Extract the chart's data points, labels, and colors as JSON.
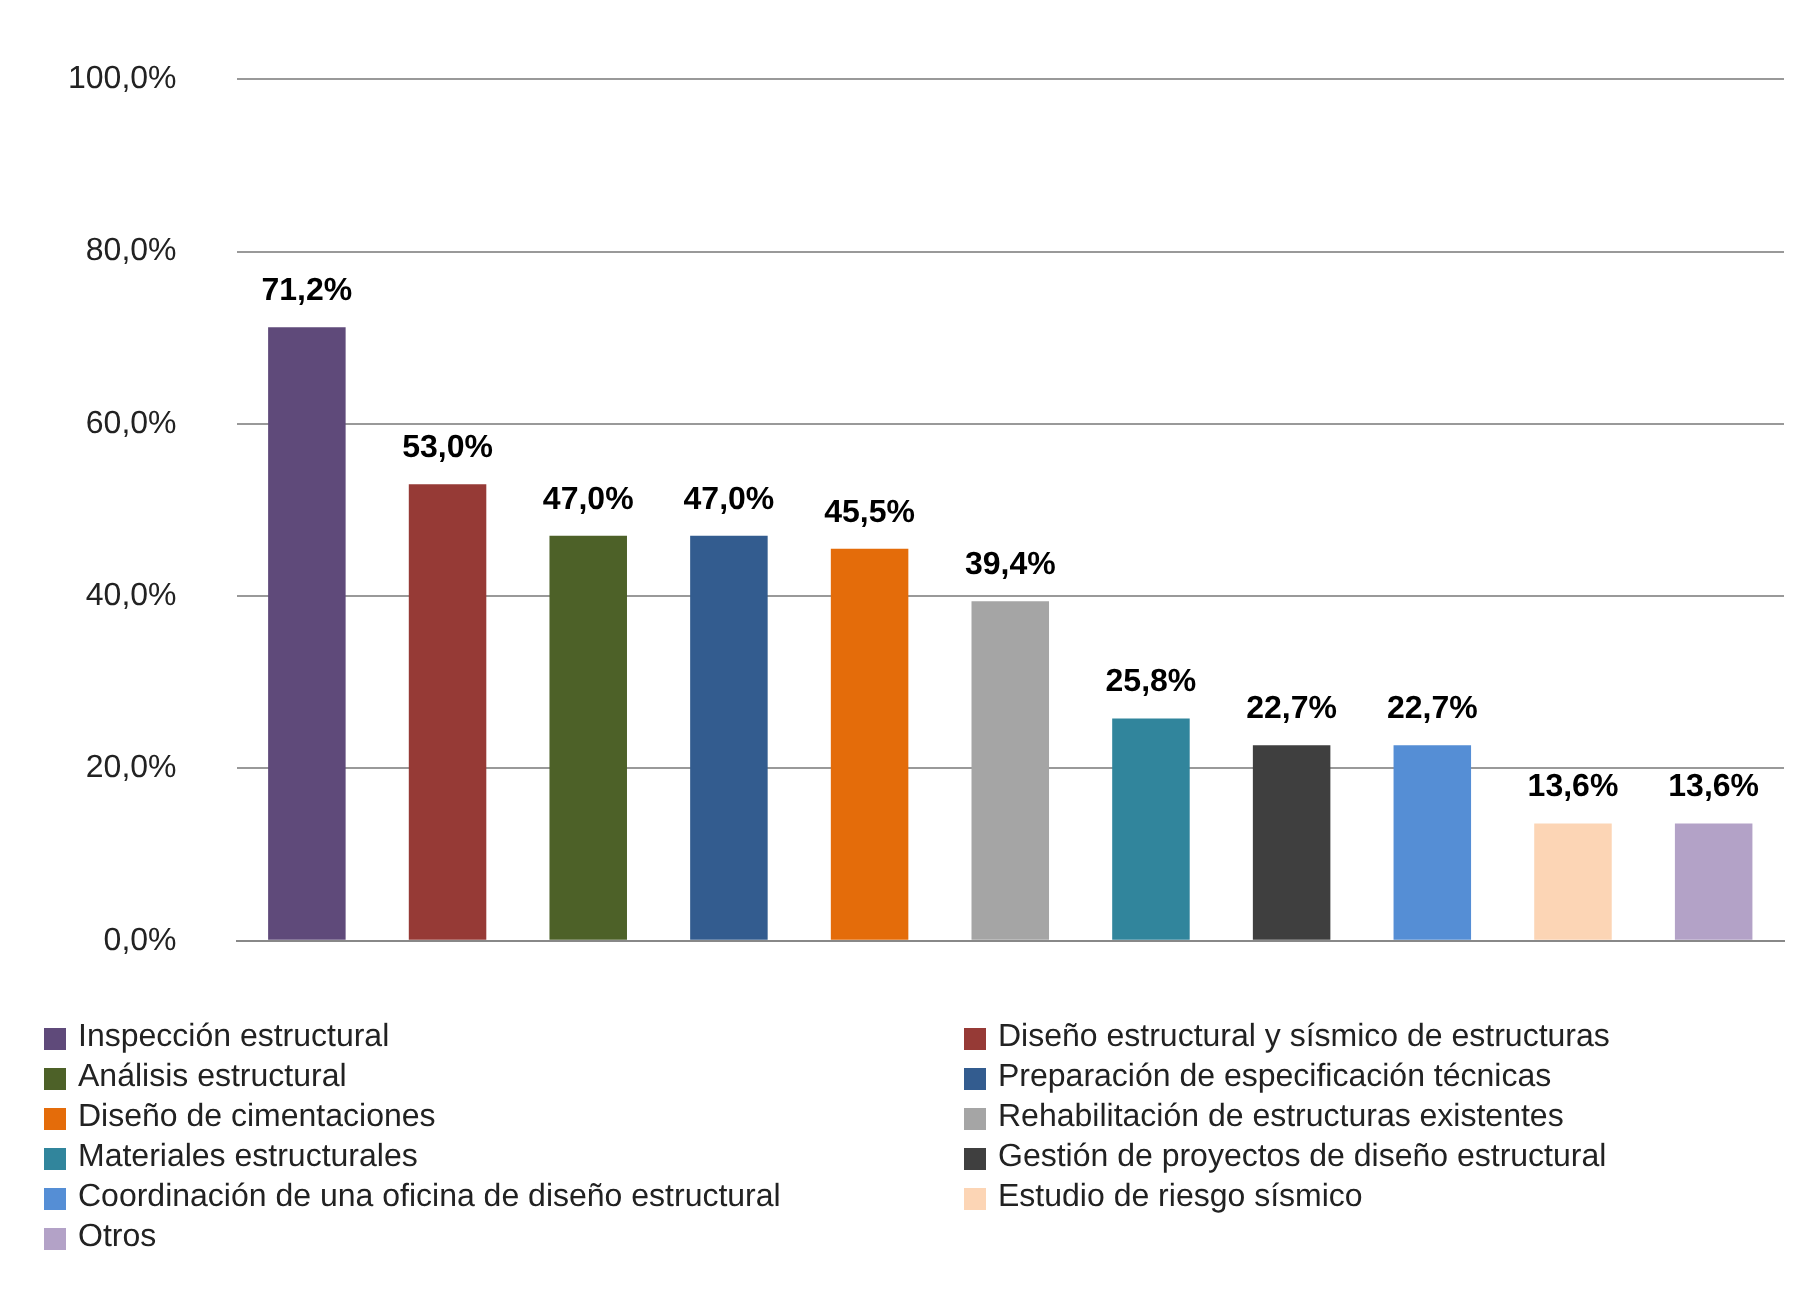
{
  "chart_data": {
    "type": "bar",
    "categories": [
      null,
      null,
      null,
      null,
      null,
      null,
      null,
      null,
      null,
      null,
      null
    ],
    "ylim": [
      0,
      100
    ],
    "yticks": [
      {
        "value": 0,
        "label": "0,0%"
      },
      {
        "value": 20,
        "label": "20,0%"
      },
      {
        "value": 40,
        "label": "40,0%"
      },
      {
        "value": 60,
        "label": "60,0%"
      },
      {
        "value": 80,
        "label": "80,0%"
      },
      {
        "value": 100,
        "label": "100,0%"
      }
    ],
    "grid": "y",
    "legend": "bottom",
    "series": [
      {
        "name": "Inspección estructural",
        "color": "#5f4a7a",
        "values": [
          71.2,
          null,
          null,
          null,
          null,
          null,
          null,
          null,
          null,
          null,
          null
        ],
        "value_labels": [
          "71,2%",
          null,
          null,
          null,
          null,
          null,
          null,
          null,
          null,
          null,
          null
        ]
      },
      {
        "name": "Diseño estructural y sísmico de estructuras",
        "color": "#963a36",
        "values": [
          null,
          53.0,
          null,
          null,
          null,
          null,
          null,
          null,
          null,
          null,
          null
        ],
        "value_labels": [
          null,
          "53,0%",
          null,
          null,
          null,
          null,
          null,
          null,
          null,
          null,
          null
        ]
      },
      {
        "name": "Análisis estructural",
        "color": "#4d6128",
        "values": [
          null,
          null,
          47.0,
          null,
          null,
          null,
          null,
          null,
          null,
          null,
          null
        ],
        "value_labels": [
          null,
          null,
          "47,0%",
          null,
          null,
          null,
          null,
          null,
          null,
          null,
          null
        ]
      },
      {
        "name": "Preparación de especificación técnicas",
        "color": "#335c8f",
        "values": [
          null,
          null,
          null,
          47.0,
          null,
          null,
          null,
          null,
          null,
          null,
          null
        ],
        "value_labels": [
          null,
          null,
          null,
          "47,0%",
          null,
          null,
          null,
          null,
          null,
          null,
          null
        ]
      },
      {
        "name": "Diseño de cimentaciones",
        "color": "#e46c0a",
        "values": [
          null,
          null,
          null,
          null,
          45.5,
          null,
          null,
          null,
          null,
          null,
          null
        ],
        "value_labels": [
          null,
          null,
          null,
          null,
          "45,5%",
          null,
          null,
          null,
          null,
          null,
          null
        ]
      },
      {
        "name": "Rehabilitación de estructuras existentes",
        "color": "#a5a5a5",
        "values": [
          null,
          null,
          null,
          null,
          null,
          39.4,
          null,
          null,
          null,
          null,
          null
        ],
        "value_labels": [
          null,
          null,
          null,
          null,
          null,
          "39,4%",
          null,
          null,
          null,
          null,
          null
        ]
      },
      {
        "name": "Materiales estructurales",
        "color": "#31859c",
        "values": [
          null,
          null,
          null,
          null,
          null,
          null,
          25.8,
          null,
          null,
          null,
          null
        ],
        "value_labels": [
          null,
          null,
          null,
          null,
          null,
          null,
          "25,8%",
          null,
          null,
          null,
          null
        ]
      },
      {
        "name": "Gestión de proyectos de diseño estructural",
        "color": "#3f3f3f",
        "values": [
          null,
          null,
          null,
          null,
          null,
          null,
          null,
          22.7,
          null,
          null,
          null
        ],
        "value_labels": [
          null,
          null,
          null,
          null,
          null,
          null,
          null,
          "22,7%",
          null,
          null,
          null
        ]
      },
      {
        "name": "Coordinación de una oficina de diseño estructural",
        "color": "#558ed5",
        "values": [
          null,
          null,
          null,
          null,
          null,
          null,
          null,
          null,
          22.7,
          null,
          null
        ],
        "value_labels": [
          null,
          null,
          null,
          null,
          null,
          null,
          null,
          null,
          "22,7%",
          null,
          null
        ]
      },
      {
        "name": "Estudio de riesgo sísmico",
        "color": "#fcd5b5",
        "values": [
          null,
          null,
          null,
          null,
          null,
          null,
          null,
          null,
          null,
          13.6,
          null
        ],
        "value_labels": [
          null,
          null,
          null,
          null,
          null,
          null,
          null,
          null,
          null,
          "13,6%",
          null
        ]
      },
      {
        "name": "Otros",
        "color": "#b3a2c7",
        "values": [
          null,
          null,
          null,
          null,
          null,
          null,
          null,
          null,
          null,
          null,
          13.6
        ],
        "value_labels": [
          null,
          null,
          null,
          null,
          null,
          null,
          null,
          null,
          null,
          null,
          "13,6%"
        ]
      }
    ]
  }
}
